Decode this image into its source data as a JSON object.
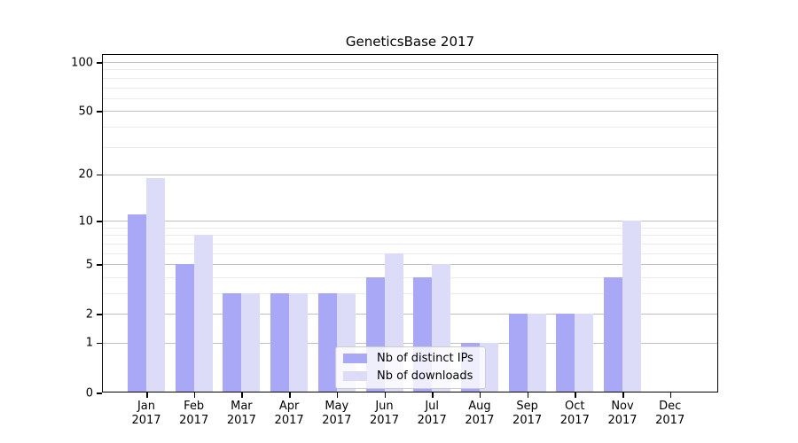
{
  "title": "GeneticsBase 2017",
  "colors": {
    "distinct_ips": "#a8a8f6",
    "downloads": "#dcdcf9",
    "grid_major": "#c0c0c0",
    "grid_minor": "#ebebeb",
    "axis": "#000000",
    "legend_border": "#cccccc"
  },
  "legend": {
    "position": "lower center"
  },
  "chart_data": {
    "type": "bar",
    "title": "GeneticsBase 2017",
    "categories": [
      "Jan 2017",
      "Feb 2017",
      "Mar 2017",
      "Apr 2017",
      "May 2017",
      "Jun 2017",
      "Jul 2017",
      "Aug 2017",
      "Sep 2017",
      "Oct 2017",
      "Nov 2017",
      "Dec 2017"
    ],
    "series": [
      {
        "key": "distinct_ips",
        "name": "Nb of distinct IPs",
        "values": [
          11,
          5,
          3,
          3,
          3,
          4,
          4,
          1,
          2,
          2,
          4,
          0
        ]
      },
      {
        "key": "downloads",
        "name": "Nb of downloads",
        "values": [
          19,
          8,
          3,
          3,
          3,
          6,
          5,
          1,
          2,
          2,
          10,
          0
        ]
      }
    ],
    "xlabel": "",
    "ylabel": "",
    "yscale": "symlog-log1p",
    "ylim": [
      0,
      112
    ],
    "yticks": [
      100,
      50,
      20,
      10,
      5,
      2,
      1,
      0
    ],
    "yticks_minor": [
      3,
      4,
      6,
      7,
      8,
      9,
      30,
      40,
      60,
      70,
      80,
      90
    ],
    "grid": true,
    "legend_position": "lower center"
  }
}
